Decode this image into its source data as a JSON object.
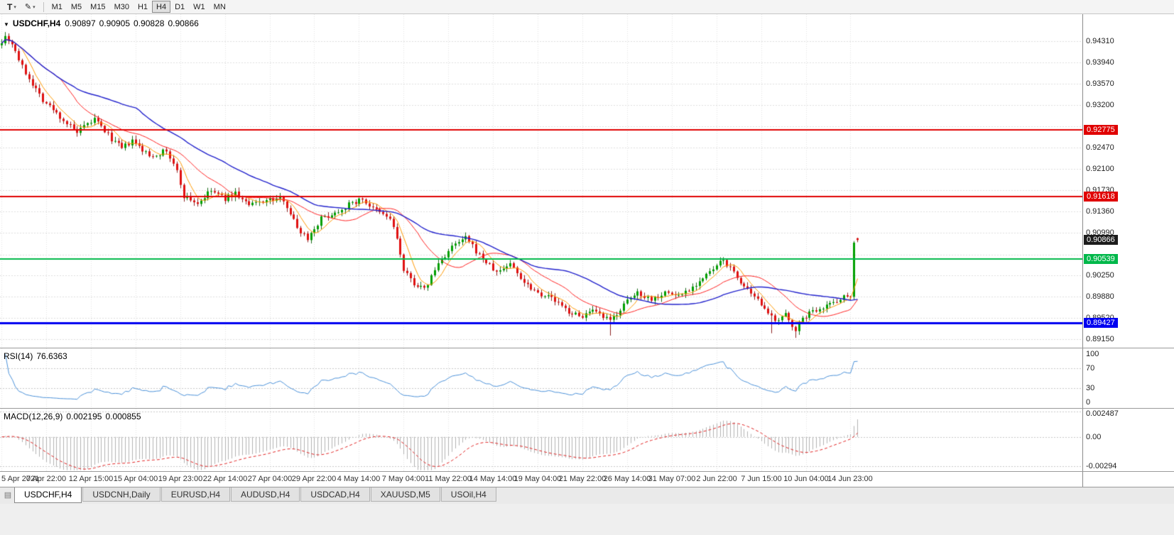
{
  "toolbar": {
    "text_tool_label": "T",
    "draw_tool_icon": "✎",
    "timeframes": [
      "M1",
      "M5",
      "M15",
      "M30",
      "H1",
      "H4",
      "D1",
      "W1",
      "MN"
    ],
    "active_timeframe": "H4"
  },
  "chart_header": {
    "symbol": "USDCHF,H4",
    "open": "0.90897",
    "high": "0.90905",
    "low": "0.90828",
    "close": "0.90866"
  },
  "price_axis": {
    "ticks": [
      "0.94310",
      "0.93940",
      "0.93570",
      "0.93200",
      "0.92470",
      "0.92100",
      "0.91730",
      "0.91360",
      "0.90990",
      "0.90250",
      "0.89880",
      "0.89520",
      "0.89150"
    ],
    "hidden_grid_values": [
      0.92835,
      0.90615
    ],
    "price_labels": [
      {
        "text": "0.92775",
        "value": 0.92775,
        "bg": "#e00000",
        "fg": "#ffffff",
        "line_width": 2
      },
      {
        "text": "0.91618",
        "value": 0.91618,
        "bg": "#e00000",
        "fg": "#ffffff",
        "line_width": 2
      },
      {
        "text": "0.90866",
        "value": 0.90866,
        "bg": "#1c1c1c",
        "fg": "#ffffff",
        "line_width": 0
      },
      {
        "text": "0.90539",
        "value": 0.90539,
        "bg": "#00b84a",
        "fg": "#ffffff",
        "line_width": 2
      },
      {
        "text": "0.89427",
        "value": 0.89427,
        "bg": "#0000f0",
        "fg": "#ffffff",
        "line_width": 3
      }
    ]
  },
  "rsi_panel": {
    "name": "RSI(14)",
    "value": "76.6363",
    "levels": [
      {
        "text": "100",
        "value": 100
      },
      {
        "text": "70",
        "value": 70
      },
      {
        "text": "30",
        "value": 30
      },
      {
        "text": "0",
        "value": 0
      }
    ],
    "dotted_levels": [
      70,
      30
    ],
    "color": "#4a90d8"
  },
  "macd_panel": {
    "name": "MACD(12,26,9)",
    "main_value": "0.002195",
    "signal_value": "0.000855",
    "axis_ticks": [
      {
        "text": "0.002487",
        "value": 0.002487
      },
      {
        "text": "0.00",
        "value": 0
      },
      {
        "text": "-0.00294",
        "value": -0.00294
      }
    ],
    "histogram_color": "#b2b2b2",
    "signal_color": "#e02020"
  },
  "tabs": [
    {
      "label": "USDCHF,H4",
      "active": true
    },
    {
      "label": "USDCNH,Daily",
      "active": false
    },
    {
      "label": "EURUSD,H4",
      "active": false
    },
    {
      "label": "AUDUSD,H4",
      "active": false
    },
    {
      "label": "USDCAD,H4",
      "active": false
    },
    {
      "label": "XAUUSD,M5",
      "active": false
    },
    {
      "label": "USOil,H4",
      "active": false
    }
  ],
  "chart_data": {
    "type": "candlestick",
    "symbol": "USDCHF",
    "timeframe": "H4",
    "bars": 250,
    "bar_spacing": 4.84,
    "label_every": 13,
    "price_axis_range": [
      0.89,
      0.9478
    ],
    "x_labels": [
      "5 Apr 2021",
      "7 Apr 22:00",
      "12 Apr 15:00",
      "15 Apr 04:00",
      "19 Apr 23:00",
      "22 Apr 14:00",
      "27 Apr 04:00",
      "29 Apr 22:00",
      "4 May 14:00",
      "7 May 04:00",
      "11 May 22:00",
      "14 May 14:00",
      "19 May 04:00",
      "21 May 22:00",
      "26 May 14:00",
      "31 May 07:00",
      "2 Jun 22:00",
      "7 Jun 15:00",
      "10 Jun 04:00",
      "14 Jun 23:00"
    ],
    "close_path": [
      [
        0,
        0.9432
      ],
      [
        1,
        0.944
      ],
      [
        3,
        0.9428
      ],
      [
        6,
        0.9386
      ],
      [
        12,
        0.933
      ],
      [
        17,
        0.93
      ],
      [
        22,
        0.9272
      ],
      [
        27,
        0.9296
      ],
      [
        32,
        0.9262
      ],
      [
        35,
        0.9245
      ],
      [
        38,
        0.9258
      ],
      [
        43,
        0.9232
      ],
      [
        48,
        0.9241
      ],
      [
        51,
        0.9205
      ],
      [
        53,
        0.9163
      ],
      [
        57,
        0.915
      ],
      [
        61,
        0.9172
      ],
      [
        65,
        0.9158
      ],
      [
        68,
        0.9168
      ],
      [
        72,
        0.9146
      ],
      [
        76,
        0.9155
      ],
      [
        82,
        0.9158
      ],
      [
        86,
        0.9108
      ],
      [
        89,
        0.909
      ],
      [
        93,
        0.9124
      ],
      [
        97,
        0.9134
      ],
      [
        101,
        0.9148
      ],
      [
        105,
        0.9158
      ],
      [
        108,
        0.914
      ],
      [
        113,
        0.9124
      ],
      [
        115,
        0.909
      ],
      [
        117,
        0.9032
      ],
      [
        120,
        0.9012
      ],
      [
        123,
        0.9
      ],
      [
        127,
        0.9046
      ],
      [
        131,
        0.9074
      ],
      [
        135,
        0.909
      ],
      [
        139,
        0.906
      ],
      [
        144,
        0.903
      ],
      [
        148,
        0.9046
      ],
      [
        152,
        0.9014
      ],
      [
        156,
        0.8996
      ],
      [
        160,
        0.8986
      ],
      [
        164,
        0.8966
      ],
      [
        168,
        0.8954
      ],
      [
        172,
        0.8962
      ],
      [
        177,
        0.8946
      ],
      [
        181,
        0.8974
      ],
      [
        185,
        0.8996
      ],
      [
        189,
        0.8984
      ],
      [
        193,
        0.8996
      ],
      [
        197,
        0.899
      ],
      [
        201,
        0.9006
      ],
      [
        206,
        0.903
      ],
      [
        210,
        0.9052
      ],
      [
        214,
        0.9022
      ],
      [
        218,
        0.899
      ],
      [
        222,
        0.8972
      ],
      [
        225,
        0.8942
      ],
      [
        228,
        0.8956
      ],
      [
        231,
        0.8932
      ],
      [
        234,
        0.8956
      ],
      [
        238,
        0.897
      ],
      [
        241,
        0.8976
      ],
      [
        244,
        0.8986
      ],
      [
        247,
        0.8992
      ],
      [
        248,
        0.9082
      ],
      [
        249,
        0.90866
      ]
    ],
    "low_spikes": [
      [
        177,
        0.8921
      ],
      [
        224,
        0.8925
      ],
      [
        231,
        0.8917
      ]
    ],
    "high_spikes": [
      [
        1,
        0.9447
      ],
      [
        135,
        0.9094
      ],
      [
        210,
        0.9056
      ]
    ],
    "last_bar": {
      "open": 0.90897,
      "high": 0.90905,
      "low": 0.90828,
      "close": 0.90866
    },
    "moving_averages": [
      {
        "period": 6,
        "color": "#ff9900",
        "width": 1
      },
      {
        "period": 18,
        "color": "#ff2020",
        "width": 1
      },
      {
        "period": 40,
        "color": "#2222cc",
        "width": 1.4
      }
    ],
    "candle_colors": {
      "up": "#00a000",
      "up_border": "#1a6b1a",
      "down": "#e01010",
      "down_border": "#8b2020"
    },
    "rsi_period": 14,
    "macd_params": [
      12,
      26,
      9
    ],
    "macd_range": [
      -0.0034,
      0.0028
    ]
  }
}
